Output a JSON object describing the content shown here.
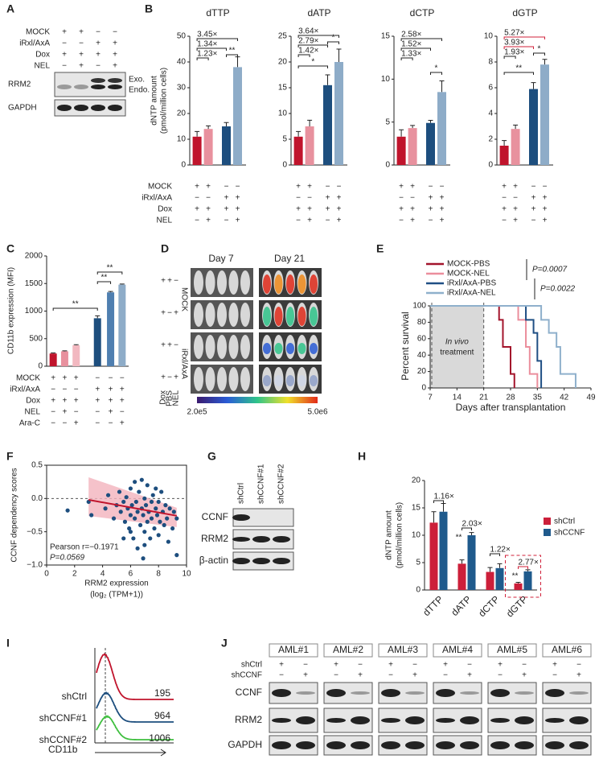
{
  "panel_labels": [
    "A",
    "B",
    "C",
    "D",
    "E",
    "F",
    "G",
    "H",
    "I",
    "J"
  ],
  "blot_a": {
    "conditions": [
      {
        "label": "MOCK",
        "signs": [
          "+",
          "+",
          "−",
          "−"
        ]
      },
      {
        "label": "iRxl/AxA",
        "signs": [
          "−",
          "−",
          "+",
          "+"
        ]
      },
      {
        "label": "Dox",
        "signs": [
          "+",
          "+",
          "+",
          "+"
        ]
      },
      {
        "label": "NEL",
        "signs": [
          "−",
          "+",
          "−",
          "+"
        ]
      }
    ],
    "bands": [
      "RRM2",
      "GAPDH"
    ],
    "notes": [
      "Exo.",
      "Endo."
    ]
  },
  "panel_b": {
    "y_label": [
      "dNTP amount",
      "(pmol/million cells)"
    ],
    "conditions": [
      {
        "label": "MOCK",
        "signs": [
          "+",
          "+",
          "−",
          "−"
        ]
      },
      {
        "label": "iRxl/AxA",
        "signs": [
          "−",
          "−",
          "+",
          "+"
        ]
      },
      {
        "label": "Dox",
        "signs": [
          "+",
          "+",
          "+",
          "+"
        ]
      },
      {
        "label": "NEL",
        "signs": [
          "−",
          "+",
          "−",
          "+"
        ]
      }
    ]
  },
  "panel_c": {
    "conditions": [
      {
        "label": "MOCK",
        "signs": [
          "+",
          "+",
          "+",
          "−",
          "−",
          "−"
        ]
      },
      {
        "label": "iRxl/AxA",
        "signs": [
          "−",
          "−",
          "−",
          "+",
          "+",
          "+"
        ]
      },
      {
        "label": "Dox",
        "signs": [
          "+",
          "+",
          "+",
          "+",
          "+",
          "+"
        ]
      },
      {
        "label": "NEL",
        "signs": [
          "−",
          "+",
          "−",
          "−",
          "+",
          "−"
        ]
      },
      {
        "label": "Ara-C",
        "signs": [
          "−",
          "−",
          "+",
          "−",
          "−",
          "+"
        ]
      }
    ]
  },
  "panel_d": {
    "columns": [
      "Day 7",
      "Day 21"
    ],
    "groups": [
      "MOCK",
      "iRxl/AxA"
    ],
    "row_signs": [
      [
        "+",
        "+",
        "−"
      ],
      [
        "+",
        "−",
        "+"
      ],
      [
        "+",
        "+",
        "−"
      ],
      [
        "+",
        "−",
        "+"
      ]
    ],
    "sign_labels": [
      "Dox",
      "PBS",
      "NEL"
    ],
    "scale": [
      "2.0e5",
      "5.0e6"
    ]
  },
  "panel_g": {
    "lanes": [
      "shCtrl",
      "shCCNF#1",
      "shCCNF#2"
    ],
    "bands": [
      "CCNF",
      "RRM2",
      "β-actin"
    ]
  },
  "panel_i": {
    "samples": [
      {
        "name": "shCtrl",
        "mfi": 195
      },
      {
        "name": "shCCNF#1",
        "mfi": 964
      },
      {
        "name": "shCCNF#2",
        "mfi": 1006
      }
    ],
    "x_label": "CD11b"
  },
  "panel_j": {
    "samples": [
      "AML#1",
      "AML#2",
      "AML#3",
      "AML#4",
      "AML#5",
      "AML#6"
    ],
    "conditions": [
      {
        "label": "shCtrl",
        "signs": [
          "+",
          "−"
        ]
      },
      {
        "label": "shCCNF",
        "signs": [
          "−",
          "+"
        ]
      }
    ],
    "bands": [
      "CCNF",
      "RRM2",
      "GAPDH"
    ]
  },
  "chart_data": [
    {
      "type": "bar",
      "title": "dTTP",
      "values": [
        11,
        14,
        15,
        38
      ],
      "errors": [
        2,
        1.2,
        1.5,
        4
      ],
      "colors": [
        "#c0142c",
        "#e8919e",
        "#1d4e7e",
        "#8eacc8"
      ],
      "ylim": [
        0,
        50
      ],
      "yticks": [
        0,
        10,
        20,
        30,
        40,
        50
      ],
      "annotations": [
        "3.45×",
        "1.34×",
        "1.23×",
        "**"
      ]
    },
    {
      "type": "bar",
      "title": "dATP",
      "values": [
        5.5,
        7.5,
        15.5,
        20
      ],
      "errors": [
        1,
        1.2,
        2,
        2.5
      ],
      "colors": [
        "#c0142c",
        "#e8919e",
        "#1d4e7e",
        "#8eacc8"
      ],
      "ylim": [
        0,
        25
      ],
      "yticks": [
        0,
        5,
        10,
        15,
        20,
        25
      ],
      "annotations": [
        "3.64×",
        "2.79×",
        "1.42×",
        "*",
        "*"
      ]
    },
    {
      "type": "bar",
      "title": "dCTP",
      "values": [
        3.3,
        4.3,
        4.9,
        8.5
      ],
      "errors": [
        0.8,
        0.3,
        0.3,
        1.3
      ],
      "colors": [
        "#c0142c",
        "#e8919e",
        "#1d4e7e",
        "#8eacc8"
      ],
      "ylim": [
        0,
        15
      ],
      "yticks": [
        0,
        5,
        10,
        15
      ],
      "annotations": [
        "2.58×",
        "1.52×",
        "1.33×",
        "*"
      ]
    },
    {
      "type": "bar",
      "title": "dGTP",
      "values": [
        1.5,
        2.8,
        5.9,
        7.8
      ],
      "errors": [
        0.4,
        0.3,
        0.5,
        0.4
      ],
      "colors": [
        "#c0142c",
        "#e8919e",
        "#1d4e7e",
        "#8eacc8"
      ],
      "ylim": [
        0,
        10
      ],
      "yticks": [
        0,
        2,
        4,
        6,
        8,
        10
      ],
      "annotations": [
        "5.27×",
        "3.93×",
        "1.93×",
        "**",
        "*"
      ]
    },
    {
      "type": "bar",
      "y_label": "CD11b expression (MFI)",
      "values": [
        230,
        270,
        380,
        870,
        1340,
        1480
      ],
      "errors": [
        10,
        10,
        10,
        45,
        15,
        10
      ],
      "colors": [
        "#c0142c",
        "#e8919e",
        "#f2b8c0",
        "#1d4e7e",
        "#4f7fb0",
        "#8eacc8"
      ],
      "ylim": [
        0,
        2000
      ],
      "yticks": [
        0,
        500,
        1000,
        1500,
        2000
      ],
      "annotations": [
        "**",
        "**",
        "**"
      ]
    },
    {
      "type": "line",
      "x_label": "Days after transplantation",
      "y_label": "Percent survival",
      "xlim": [
        7,
        49
      ],
      "xticks": [
        7,
        14,
        21,
        28,
        35,
        42,
        49
      ],
      "ylim": [
        0,
        100
      ],
      "yticks": [
        0,
        20,
        40,
        60,
        80,
        100
      ],
      "annotations": [
        "P=0.0007",
        "P=0.0022"
      ],
      "shade_label": [
        "In vivo",
        "treatment"
      ],
      "series": [
        {
          "name": "MOCK-PBS",
          "color": "#a3142b",
          "x": [
            7,
            25,
            25,
            26,
            26,
            28,
            28,
            29,
            29
          ],
          "values": [
            100,
            100,
            83,
            83,
            50,
            50,
            17,
            17,
            0
          ]
        },
        {
          "name": "MOCK-NEL",
          "color": "#eb8e9c",
          "x": [
            7,
            30,
            30,
            32,
            32,
            33,
            33,
            35,
            35
          ],
          "values": [
            100,
            100,
            83,
            83,
            50,
            50,
            17,
            17,
            0
          ]
        },
        {
          "name": "iRxl/AxA-PBS",
          "color": "#1f4f84",
          "x": [
            7,
            32,
            32,
            34,
            34,
            35,
            35,
            36,
            36
          ],
          "values": [
            100,
            100,
            83,
            83,
            67,
            67,
            33,
            33,
            0
          ]
        },
        {
          "name": "iRxl/AxA-NEL",
          "color": "#8fb0cc",
          "x": [
            7,
            36,
            36,
            38,
            38,
            40,
            40,
            41,
            41,
            45,
            45
          ],
          "values": [
            100,
            100,
            83,
            83,
            67,
            67,
            50,
            50,
            17,
            17,
            0
          ]
        }
      ]
    },
    {
      "type": "scatter",
      "x_label": [
        "RRM2 expression",
        "(log₂ (TPM+1))"
      ],
      "y_label": "CCNF dependency scores",
      "xlim": [
        0,
        10
      ],
      "xticks": [
        0,
        2,
        4,
        6,
        8,
        10
      ],
      "ylim": [
        -1,
        0.5
      ],
      "yticks": [
        {
          "value": -1,
          "label": "−1.0"
        },
        {
          "value": -0.5,
          "label": "−0.5"
        },
        {
          "value": 0,
          "label": "0.0"
        },
        {
          "value": 0.5,
          "label": "0.5"
        }
      ],
      "color": "#1d4e7e",
      "stats": [
        "Pearson r=−0.1971",
        "P=0.0569"
      ],
      "x": [
        1.5,
        3.0,
        3.2,
        4.2,
        4.4,
        4.8,
        5.0,
        5.2,
        5.3,
        5.5,
        5.6,
        5.7,
        5.8,
        5.9,
        6.0,
        6.0,
        6.1,
        6.2,
        6.3,
        6.3,
        6.4,
        6.5,
        6.5,
        6.6,
        6.7,
        6.8,
        6.8,
        6.9,
        7.0,
        7.0,
        7.1,
        7.2,
        7.2,
        7.3,
        7.4,
        7.5,
        7.5,
        7.6,
        7.7,
        7.8,
        7.8,
        7.9,
        8.0,
        8.0,
        8.1,
        8.2,
        8.3,
        8.4,
        8.5,
        8.6,
        8.8,
        9.0,
        9.1,
        9.3,
        9.3,
        7.0,
        6.0,
        5.5,
        8.7,
        6.9
      ],
      "values": [
        -0.18,
        -0.05,
        -0.25,
        -0.15,
        0.05,
        -0.3,
        -0.1,
        0.1,
        -0.2,
        -0.05,
        -0.35,
        0.02,
        -0.15,
        -0.45,
        -0.25,
        0.15,
        -0.1,
        -0.6,
        -0.3,
        0.25,
        -0.05,
        -0.2,
        -0.75,
        0.1,
        -0.4,
        -0.15,
        0.28,
        -0.25,
        -0.5,
        0.0,
        -0.1,
        -0.35,
        0.2,
        -0.2,
        -0.6,
        -0.05,
        -0.3,
        0.05,
        -0.45,
        -0.15,
        0.15,
        -0.25,
        -0.55,
        -0.05,
        -0.35,
        0.1,
        -0.2,
        -0.4,
        -0.1,
        -0.3,
        -0.15,
        -0.45,
        -0.2,
        -0.85,
        -0.3,
        -0.7,
        -0.5,
        -0.6,
        -0.65,
        -0.9
      ],
      "fit": {
        "x": [
          3,
          9.3
        ],
        "values": [
          -0.02,
          -0.26
        ]
      }
    },
    {
      "type": "grouped-bar",
      "y_label": [
        "dNTP amount",
        "(pmol/million cells)"
      ],
      "categories": [
        "dTTP",
        "dATP",
        "dCTP",
        "dGTP"
      ],
      "ylim": [
        0,
        20
      ],
      "yticks": [
        0,
        5,
        10,
        15,
        20
      ],
      "annotations": [
        "1.16×",
        "2.03×",
        "1.22×",
        "2.77×",
        "**",
        "**"
      ],
      "series": [
        {
          "name": "shCtrl",
          "color": "#cc1f3a",
          "values": [
            12.3,
            4.8,
            3.3,
            1.2
          ],
          "errors": [
            2,
            0.7,
            0.8,
            0.2
          ]
        },
        {
          "name": "shCCNF",
          "color": "#1f5a8c",
          "values": [
            14.3,
            10,
            4,
            3.4
          ],
          "errors": [
            1.5,
            0.5,
            0.8,
            0.3
          ]
        }
      ]
    }
  ]
}
